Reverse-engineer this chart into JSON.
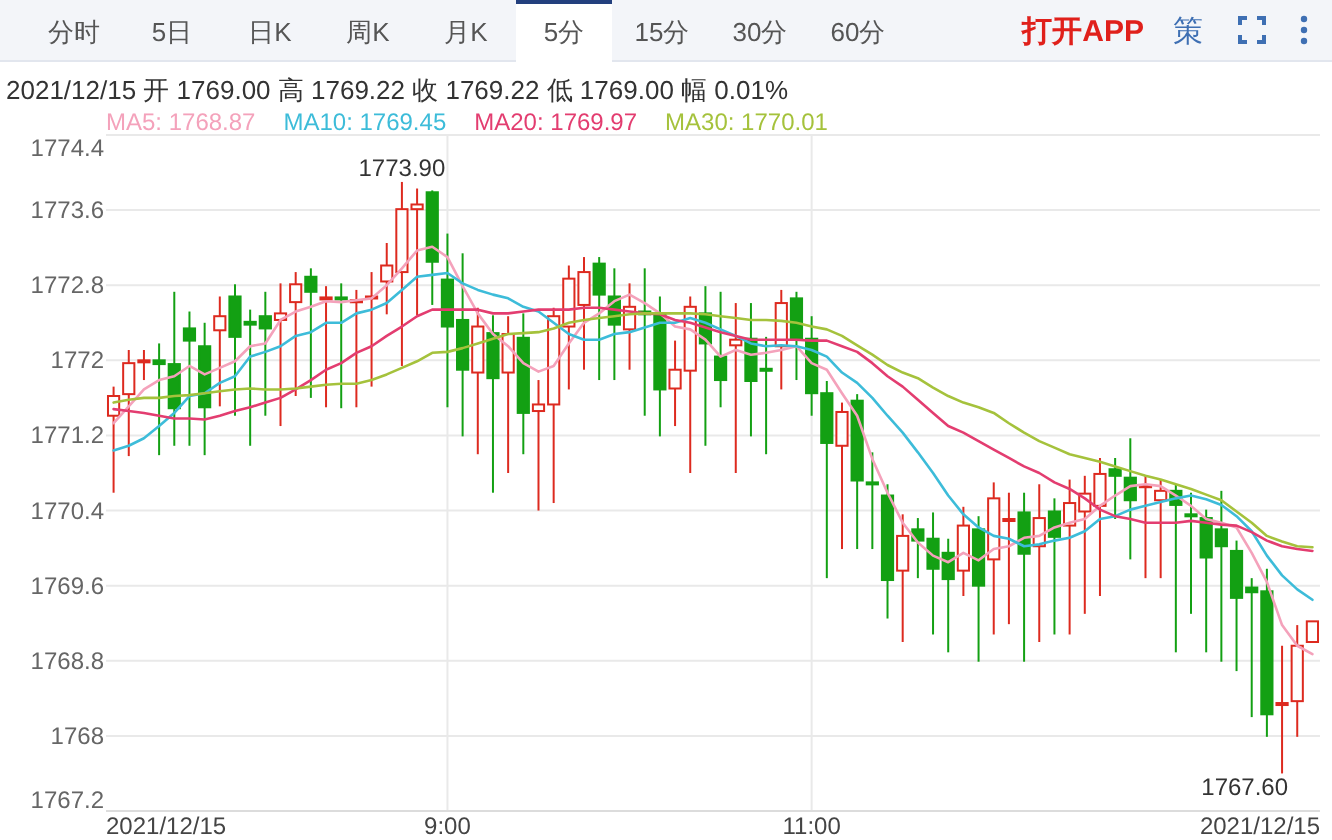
{
  "chart_data": {
    "type": "candlestick",
    "subtitle": "2021/12/15 开 1769.00 高 1769.22 收 1769.22 低 1769.00 幅 0.01%",
    "categories": [
      null,
      null,
      null,
      null,
      null,
      null,
      null,
      null,
      null,
      null,
      null,
      null,
      null,
      null,
      null,
      null,
      null,
      null,
      null,
      null,
      null,
      null,
      "9:00",
      null,
      null,
      null,
      null,
      null,
      null,
      null,
      null,
      null,
      null,
      null,
      null,
      null,
      null,
      null,
      null,
      null,
      null,
      null,
      null,
      null,
      null,
      null,
      "11:00",
      null,
      null,
      null,
      null,
      null,
      null,
      null,
      null,
      null,
      null,
      null,
      null,
      null,
      null,
      null,
      null,
      null,
      null,
      null,
      null,
      null,
      null,
      null,
      null,
      null,
      null,
      null,
      null,
      null,
      null,
      null,
      null,
      null
    ],
    "ohlc": [
      [
        1771.41,
        1771.72,
        1770.59,
        1771.62
      ],
      [
        1771.64,
        1772.11,
        1770.98,
        1771.97
      ],
      [
        1771.99,
        1772.11,
        1771.79,
        1772.0
      ],
      [
        1772.0,
        1772.18,
        1770.99,
        1771.96
      ],
      [
        1771.96,
        1772.73,
        1771.09,
        1771.49
      ],
      [
        1772.34,
        1772.52,
        1771.09,
        1772.21
      ],
      [
        1772.15,
        1772.4,
        1770.99,
        1771.5
      ],
      [
        1772.32,
        1772.68,
        1771.51,
        1772.47
      ],
      [
        1772.68,
        1772.81,
        1771.41,
        1772.25
      ],
      [
        1772.41,
        1772.54,
        1771.09,
        1772.38
      ],
      [
        1772.47,
        1772.73,
        1771.41,
        1772.34
      ],
      [
        1772.43,
        1772.82,
        1771.3,
        1772.5
      ],
      [
        1772.62,
        1772.94,
        1771.62,
        1772.81
      ],
      [
        1772.89,
        1772.98,
        1771.6,
        1772.73
      ],
      [
        1772.65,
        1772.79,
        1771.5,
        1772.67
      ],
      [
        1772.67,
        1772.82,
        1771.49,
        1772.65
      ],
      [
        1772.63,
        1772.75,
        1771.5,
        1772.64
      ],
      [
        1772.67,
        1772.94,
        1771.72,
        1772.68
      ],
      [
        1772.84,
        1773.25,
        1772.49,
        1773.01
      ],
      [
        1772.94,
        1773.9,
        1771.94,
        1773.61
      ],
      [
        1773.61,
        1773.83,
        1772.48,
        1773.66
      ],
      [
        1773.79,
        1773.81,
        1772.59,
        1773.05
      ],
      [
        1772.86,
        1773.35,
        1771.5,
        1772.36
      ],
      [
        1772.43,
        1773.14,
        1771.19,
        1771.9
      ],
      [
        1771.87,
        1772.56,
        1771.0,
        1772.36
      ],
      [
        1772.29,
        1772.48,
        1770.59,
        1771.81
      ],
      [
        1771.87,
        1772.47,
        1770.8,
        1772.28
      ],
      [
        1772.24,
        1772.5,
        1771.0,
        1771.44
      ],
      [
        1771.46,
        1771.79,
        1770.4,
        1771.53
      ],
      [
        1771.53,
        1772.56,
        1770.48,
        1772.47
      ],
      [
        1772.36,
        1773.01,
        1771.69,
        1772.87
      ],
      [
        1772.59,
        1773.1,
        1771.9,
        1772.94
      ],
      [
        1773.03,
        1773.1,
        1771.79,
        1772.7
      ],
      [
        1772.68,
        1772.98,
        1771.79,
        1772.38
      ],
      [
        1772.33,
        1772.82,
        1771.9,
        1772.57
      ],
      [
        1772.52,
        1772.98,
        1771.41,
        1772.49
      ],
      [
        1772.5,
        1772.68,
        1771.19,
        1771.69
      ],
      [
        1771.7,
        1772.21,
        1771.3,
        1771.9
      ],
      [
        1771.89,
        1772.68,
        1770.8,
        1772.57
      ],
      [
        1772.5,
        1772.79,
        1771.09,
        1772.18
      ],
      [
        1772.04,
        1772.73,
        1771.5,
        1771.79
      ],
      [
        1772.16,
        1772.61,
        1770.8,
        1772.22
      ],
      [
        1772.23,
        1772.61,
        1771.19,
        1771.78
      ],
      [
        1771.91,
        1772.25,
        1771.0,
        1771.89
      ],
      [
        1772.15,
        1772.75,
        1771.69,
        1772.61
      ],
      [
        1772.66,
        1772.73,
        1771.79,
        1772.23
      ],
      [
        1772.23,
        1772.47,
        1771.41,
        1771.65
      ],
      [
        1771.65,
        1771.78,
        1769.68,
        1771.12
      ],
      [
        1771.09,
        1771.55,
        1769.99,
        1771.45
      ],
      [
        1771.57,
        1771.64,
        1769.99,
        1770.72
      ],
      [
        1770.7,
        1771.02,
        1769.99,
        1770.69
      ],
      [
        1770.56,
        1770.68,
        1769.25,
        1769.66
      ],
      [
        1769.76,
        1770.36,
        1769.0,
        1770.13
      ],
      [
        1770.2,
        1770.32,
        1769.68,
        1770.08
      ],
      [
        1770.1,
        1770.38,
        1769.08,
        1769.78
      ],
      [
        1769.95,
        1770.1,
        1768.89,
        1769.67
      ],
      [
        1769.76,
        1770.44,
        1769.49,
        1770.24
      ],
      [
        1770.2,
        1770.34,
        1768.79,
        1769.6
      ],
      [
        1769.88,
        1770.7,
        1769.08,
        1770.53
      ],
      [
        1770.3,
        1770.59,
        1769.19,
        1770.31
      ],
      [
        1770.38,
        1770.59,
        1768.79,
        1769.94
      ],
      [
        1770.02,
        1770.68,
        1769.0,
        1770.32
      ],
      [
        1770.39,
        1770.53,
        1769.08,
        1770.12
      ],
      [
        1770.24,
        1770.73,
        1769.08,
        1770.48
      ],
      [
        1770.39,
        1770.77,
        1769.3,
        1770.58
      ],
      [
        1770.45,
        1770.96,
        1769.49,
        1770.79
      ],
      [
        1770.84,
        1770.96,
        1770.31,
        1770.77
      ],
      [
        1770.75,
        1771.17,
        1769.88,
        1770.51
      ],
      [
        1770.65,
        1770.77,
        1769.68,
        1770.67
      ],
      [
        1770.51,
        1770.73,
        1769.68,
        1770.61
      ],
      [
        1770.61,
        1770.68,
        1768.89,
        1770.46
      ],
      [
        1770.36,
        1770.59,
        1769.3,
        1770.34
      ],
      [
        1770.32,
        1770.41,
        1768.89,
        1769.9
      ],
      [
        1770.2,
        1770.61,
        1768.79,
        1770.02
      ],
      [
        1769.97,
        1770.08,
        1768.69,
        1769.47
      ],
      [
        1769.58,
        1769.68,
        1768.2,
        1769.53
      ],
      [
        1769.54,
        1769.78,
        1767.99,
        1768.23
      ],
      [
        1768.34,
        1768.96,
        1767.6,
        1768.35
      ],
      [
        1768.37,
        1769.18,
        1767.99,
        1768.96
      ],
      [
        1769.0,
        1769.22,
        1769.0,
        1769.22
      ]
    ],
    "colors": [
      "#dd2a1f",
      "#dd2a1f",
      "#dd2a1f",
      "#13a013",
      "#13a013",
      "#13a013",
      "#13a013",
      "#dd2a1f",
      "#13a013",
      "#13a013",
      "#13a013",
      "#dd2a1f",
      "#dd2a1f",
      "#13a013",
      "#dd2a1f",
      "#13a013",
      "#dd2a1f",
      "#dd2a1f",
      "#dd2a1f",
      "#dd2a1f",
      "#dd2a1f",
      "#13a013",
      "#13a013",
      "#13a013",
      "#dd2a1f",
      "#13a013",
      "#dd2a1f",
      "#13a013",
      "#dd2a1f",
      "#dd2a1f",
      "#dd2a1f",
      "#dd2a1f",
      "#13a013",
      "#13a013",
      "#dd2a1f",
      "#13a013",
      "#13a013",
      "#dd2a1f",
      "#dd2a1f",
      "#13a013",
      "#13a013",
      "#dd2a1f",
      "#13a013",
      "#13a013",
      "#dd2a1f",
      "#13a013",
      "#13a013",
      "#13a013",
      "#dd2a1f",
      "#13a013",
      "#13a013",
      "#13a013",
      "#dd2a1f",
      "#13a013",
      "#13a013",
      "#13a013",
      "#dd2a1f",
      "#13a013",
      "#dd2a1f",
      "#dd2a1f",
      "#13a013",
      "#dd2a1f",
      "#13a013",
      "#dd2a1f",
      "#dd2a1f",
      "#dd2a1f",
      "#13a013",
      "#13a013",
      "#dd2a1f",
      "#dd2a1f",
      "#13a013",
      "#13a013",
      "#13a013",
      "#13a013",
      "#13a013",
      "#13a013",
      "#13a013",
      "#dd2a1f",
      "#dd2a1f",
      "#dd2a1f"
    ],
    "series": [
      {
        "name": "MA5: 1768.87",
        "type": "line",
        "color": "#f4a2bb",
        "values": [
          1771.33,
          1771.51,
          1771.69,
          1771.79,
          1771.83,
          1771.94,
          1771.85,
          1771.92,
          1771.99,
          1772.15,
          1772.18,
          1772.43,
          1772.52,
          1772.57,
          1772.63,
          1772.62,
          1772.64,
          1772.66,
          1772.8,
          1772.98,
          1773.17,
          1773.21,
          1773.1,
          1772.79,
          1772.5,
          1772.28,
          1772.15,
          1771.97,
          1771.88,
          1771.94,
          1772.18,
          1772.4,
          1772.5,
          1772.63,
          1772.7,
          1772.61,
          1772.5,
          1772.36,
          1772.33,
          1772.22,
          1772.04,
          1772.11,
          1772.06,
          1772.08,
          1772.11,
          1772.15,
          1771.97,
          1771.9,
          1771.65,
          1771.41,
          1770.95,
          1770.59,
          1770.27,
          1770.06,
          1769.92,
          1769.85,
          1769.95,
          1769.87,
          1769.99,
          1770.02,
          1770.11,
          1770.13,
          1770.22,
          1770.27,
          1770.31,
          1770.45,
          1770.56,
          1770.66,
          1770.68,
          1770.66,
          1770.56,
          1770.45,
          1770.31,
          1770.27,
          1770.22,
          1769.95,
          1769.64,
          1769.18,
          1768.96,
          1768.87
        ]
      },
      {
        "name": "MA10: 1769.45",
        "type": "line",
        "color": "#3dbcd9",
        "values": [
          1771.04,
          1771.09,
          1771.17,
          1771.3,
          1771.44,
          1771.62,
          1771.65,
          1771.76,
          1771.83,
          1772.04,
          1772.09,
          1772.15,
          1772.26,
          1772.3,
          1772.4,
          1772.4,
          1772.5,
          1772.54,
          1772.61,
          1772.75,
          1772.89,
          1772.91,
          1772.93,
          1772.82,
          1772.75,
          1772.7,
          1772.66,
          1772.57,
          1772.52,
          1772.4,
          1772.28,
          1772.22,
          1772.22,
          1772.28,
          1772.3,
          1772.35,
          1772.4,
          1772.4,
          1772.45,
          1772.4,
          1772.33,
          1772.26,
          1772.18,
          1772.15,
          1772.16,
          1772.15,
          1772.11,
          1772.04,
          1771.87,
          1771.76,
          1771.6,
          1771.41,
          1771.23,
          1771.02,
          1770.8,
          1770.56,
          1770.36,
          1770.22,
          1770.13,
          1770.1,
          1770.02,
          1770.04,
          1770.08,
          1770.11,
          1770.18,
          1770.31,
          1770.34,
          1770.41,
          1770.45,
          1770.49,
          1770.53,
          1770.56,
          1770.52,
          1770.46,
          1770.34,
          1770.18,
          1769.92,
          1769.71,
          1769.56,
          1769.45
        ]
      },
      {
        "name": "MA20: 1769.97",
        "type": "line",
        "color": "#e33d70",
        "values": [
          1771.48,
          1771.46,
          1771.44,
          1771.41,
          1771.38,
          1771.38,
          1771.37,
          1771.41,
          1771.46,
          1771.5,
          1771.55,
          1771.6,
          1771.69,
          1771.79,
          1771.9,
          1771.97,
          1772.08,
          1772.15,
          1772.26,
          1772.36,
          1772.47,
          1772.54,
          1772.54,
          1772.54,
          1772.54,
          1772.5,
          1772.5,
          1772.52,
          1772.54,
          1772.54,
          1772.54,
          1772.56,
          1772.56,
          1772.54,
          1772.52,
          1772.5,
          1772.49,
          1772.43,
          1772.4,
          1772.35,
          1772.3,
          1772.26,
          1772.22,
          1772.22,
          1772.22,
          1772.22,
          1772.21,
          1772.21,
          1772.15,
          1772.09,
          1771.97,
          1771.83,
          1771.72,
          1771.58,
          1771.44,
          1771.3,
          1771.23,
          1771.14,
          1771.05,
          1770.96,
          1770.87,
          1770.8,
          1770.7,
          1770.63,
          1770.53,
          1770.41,
          1770.34,
          1770.31,
          1770.27,
          1770.27,
          1770.27,
          1770.29,
          1770.27,
          1770.25,
          1770.24,
          1770.17,
          1770.08,
          1770.02,
          1769.99,
          1769.97
        ]
      },
      {
        "name": "MA30: 1770.01",
        "type": "line",
        "color": "#a5c23c",
        "values": [
          1771.55,
          1771.58,
          1771.6,
          1771.6,
          1771.62,
          1771.63,
          1771.65,
          1771.67,
          1771.69,
          1771.7,
          1771.69,
          1771.69,
          1771.7,
          1771.72,
          1771.74,
          1771.75,
          1771.75,
          1771.79,
          1771.85,
          1771.92,
          1771.99,
          1772.08,
          1772.09,
          1772.13,
          1772.18,
          1772.23,
          1772.28,
          1772.29,
          1772.3,
          1772.34,
          1772.4,
          1772.43,
          1772.45,
          1772.47,
          1772.49,
          1772.5,
          1772.5,
          1772.5,
          1772.5,
          1772.49,
          1772.47,
          1772.45,
          1772.43,
          1772.43,
          1772.42,
          1772.4,
          1772.36,
          1772.33,
          1772.26,
          1772.16,
          1772.06,
          1771.95,
          1771.87,
          1771.81,
          1771.71,
          1771.62,
          1771.55,
          1771.5,
          1771.44,
          1771.33,
          1771.23,
          1771.14,
          1771.07,
          1771.0,
          1770.96,
          1770.92,
          1770.87,
          1770.82,
          1770.77,
          1770.73,
          1770.68,
          1770.63,
          1770.57,
          1770.51,
          1770.39,
          1770.27,
          1770.13,
          1770.07,
          1770.02,
          1770.01
        ]
      }
    ],
    "ylim": [
      1767.2,
      1774.4
    ],
    "yticks": [
      1767.2,
      1768,
      1768.8,
      1769.6,
      1770.4,
      1771.2,
      1772,
      1772.8,
      1773.6,
      1774.4
    ],
    "grid": true,
    "legend": "top left",
    "annotations": [
      "分时",
      "5日",
      "日K",
      "周K",
      "月K",
      "5分",
      "15分",
      "30分",
      "60分",
      "打开APP",
      "策",
      "1773.90",
      "1767.60",
      "2021/12/15",
      "2021/12/15"
    ]
  }
}
